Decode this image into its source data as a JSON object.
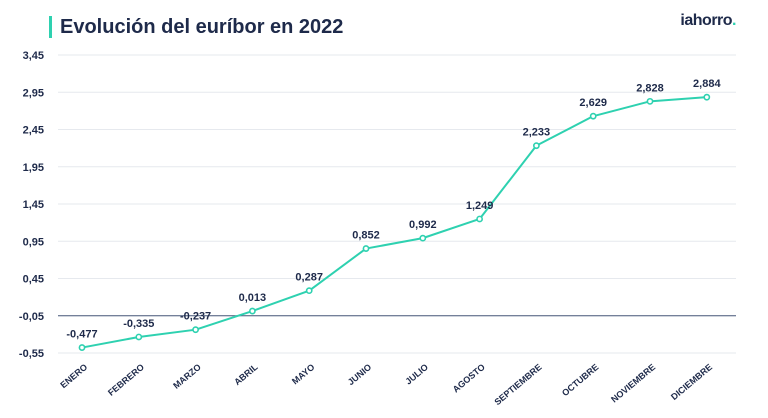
{
  "header": {
    "title": "Evolución del euríbor en 2022"
  },
  "brand": {
    "logo_main": "iahorro",
    "logo_dot": "."
  },
  "colors": {
    "line": "#2ed1b0",
    "text": "#1e2a4a",
    "grid": "#e6e9ee",
    "zero_line": "#4a5a7a",
    "accent": "#2ed1b0"
  },
  "chart_data": {
    "type": "line",
    "title": "Evolución del euríbor en 2022",
    "xlabel": "",
    "ylabel": "",
    "categories": [
      "ENERO",
      "FEBRERO",
      "MARZO",
      "ABRIL",
      "MAYO",
      "JUNIO",
      "JULIO",
      "AGOSTO",
      "SEPTIEMBRE",
      "OCTUBRE",
      "NOVIEMBRE",
      "DICIEMBRE"
    ],
    "values": [
      -0.477,
      -0.335,
      -0.237,
      0.013,
      0.287,
      0.852,
      0.992,
      1.249,
      2.233,
      2.629,
      2.828,
      2.884
    ],
    "value_labels": [
      "-0,477",
      "-0,335",
      "-0,237",
      "0,013",
      "0,287",
      "0,852",
      "0,992",
      "1,249",
      "2,233",
      "2,629",
      "2,828",
      "2,884"
    ],
    "yticks": [
      3.45,
      2.95,
      2.45,
      1.95,
      1.45,
      0.95,
      0.45,
      -0.05,
      -0.55
    ],
    "ytick_labels": [
      "3,45",
      "2,95",
      "2,45",
      "1,95",
      "1,45",
      "0,95",
      "0,45",
      "-0,05",
      "-0,55"
    ],
    "ylim": [
      -0.55,
      3.45
    ],
    "reference_line": -0.05,
    "grid": true
  }
}
